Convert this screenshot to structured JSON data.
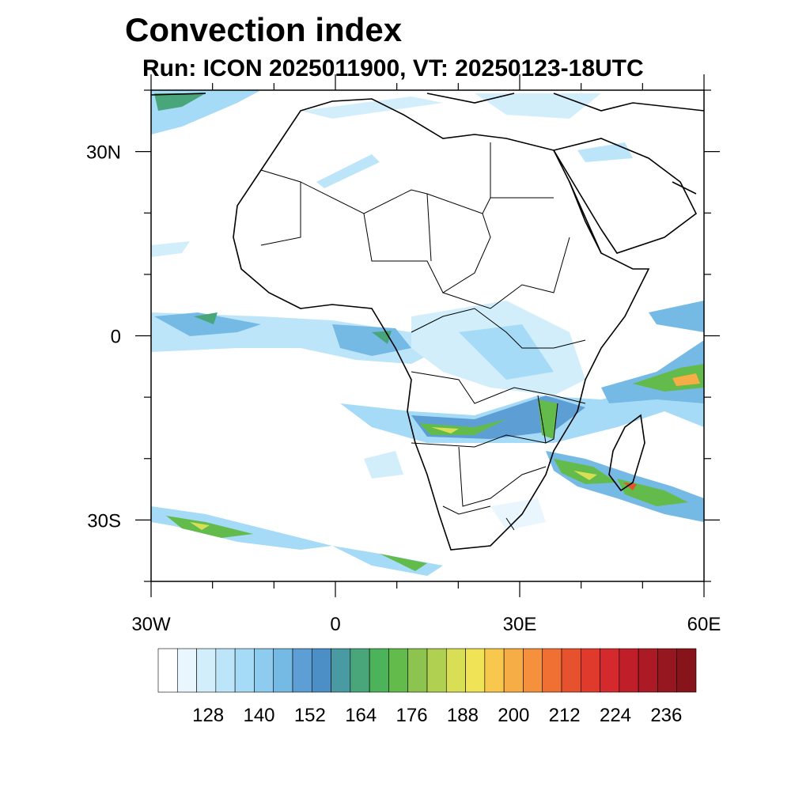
{
  "title": "Convection index",
  "subtitle": "Run: ICON 2025011900,  VT: 20250123-18UTC",
  "map": {
    "lon_range": [
      -30,
      60
    ],
    "lat_range": [
      -40,
      40
    ],
    "lat_ticks": [
      {
        "value": 30,
        "label": "30N"
      },
      {
        "value": 0,
        "label": "0"
      },
      {
        "value": -30,
        "label": "30S"
      }
    ],
    "lon_ticks": [
      {
        "value": -30,
        "label": "30W"
      },
      {
        "value": 0,
        "label": "0"
      },
      {
        "value": 30,
        "label": "30E"
      },
      {
        "value": 60,
        "label": "60E"
      }
    ]
  },
  "colorbar": {
    "colors": [
      "#ffffff",
      "#e9f6fd",
      "#d3eefb",
      "#bde5f9",
      "#a5dbf6",
      "#8dccef",
      "#75b9e5",
      "#5d9fd4",
      "#4b8fc6",
      "#4a9aa3",
      "#49a67b",
      "#4cb35a",
      "#62bb4a",
      "#8dc44f",
      "#b0d052",
      "#d8df55",
      "#f0e355",
      "#f7c84d",
      "#f7ad45",
      "#f5913c",
      "#f07034",
      "#e6522d",
      "#df3a2c",
      "#d42a2d",
      "#c01f2a",
      "#ac1a25",
      "#961720",
      "#86141a"
    ],
    "labels": [
      "128",
      "140",
      "152",
      "164",
      "176",
      "188",
      "200",
      "212",
      "224",
      "236"
    ]
  }
}
